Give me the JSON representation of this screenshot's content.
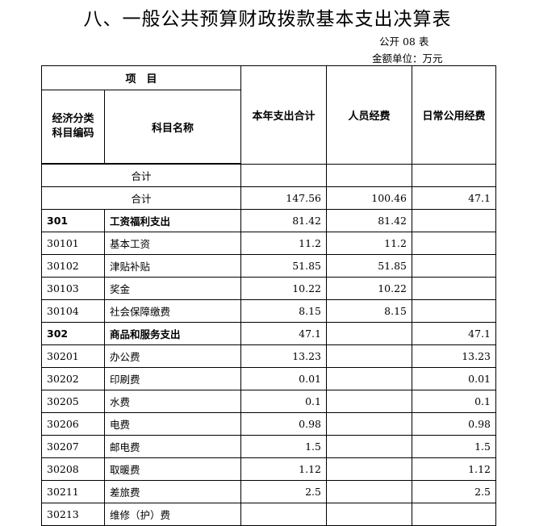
{
  "title": "八、一般公共预算财政拨款基本支出决算表",
  "form_no": "公开 08 表",
  "unit": "金额单位：万元",
  "header": {
    "project": "项　目",
    "econ_code_line1": "经济分类",
    "econ_code_line2": "科目编码",
    "subject_name": "科目名称",
    "col_total": "本年支出合计",
    "col_personnel": "人员经费",
    "col_public": "日常公用经费"
  },
  "subtotal_label": "合计",
  "total_row": {
    "label": "合计",
    "total": "147.56",
    "personnel": "100.46",
    "public": "47.1"
  },
  "rows": [
    {
      "code": "301",
      "name": "工资福利支出",
      "total": "81.42",
      "personnel": "81.42",
      "public": "",
      "bold": true
    },
    {
      "code": "30101",
      "name": "基本工资",
      "total": "11.2",
      "personnel": "11.2",
      "public": ""
    },
    {
      "code": "30102",
      "name": "津贴补贴",
      "total": "51.85",
      "personnel": "51.85",
      "public": ""
    },
    {
      "code": "30103",
      "name": "奖金",
      "total": "10.22",
      "personnel": "10.22",
      "public": ""
    },
    {
      "code": "30104",
      "name": "社会保障缴费",
      "total": "8.15",
      "personnel": "8.15",
      "public": ""
    },
    {
      "code": "302",
      "name": "商品和服务支出",
      "total": "47.1",
      "personnel": "",
      "public": "47.1",
      "bold": true
    },
    {
      "code": "30201",
      "name": "办公费",
      "total": "13.23",
      "personnel": "",
      "public": "13.23"
    },
    {
      "code": "30202",
      "name": "印刷费",
      "total": "0.01",
      "personnel": "",
      "public": "0.01"
    },
    {
      "code": "30205",
      "name": "水费",
      "total": "0.1",
      "personnel": "",
      "public": "0.1"
    },
    {
      "code": "30206",
      "name": "电费",
      "total": "0.98",
      "personnel": "",
      "public": "0.98"
    },
    {
      "code": "30207",
      "name": "邮电费",
      "total": "1.5",
      "personnel": "",
      "public": "1.5"
    },
    {
      "code": "30208",
      "name": "取暖费",
      "total": "1.12",
      "personnel": "",
      "public": "1.12"
    },
    {
      "code": "30211",
      "name": "差旅费",
      "total": "2.5",
      "personnel": "",
      "public": "2.5"
    },
    {
      "code": "30213",
      "name": "维修（护）费",
      "total": "",
      "personnel": "",
      "public": ""
    }
  ]
}
